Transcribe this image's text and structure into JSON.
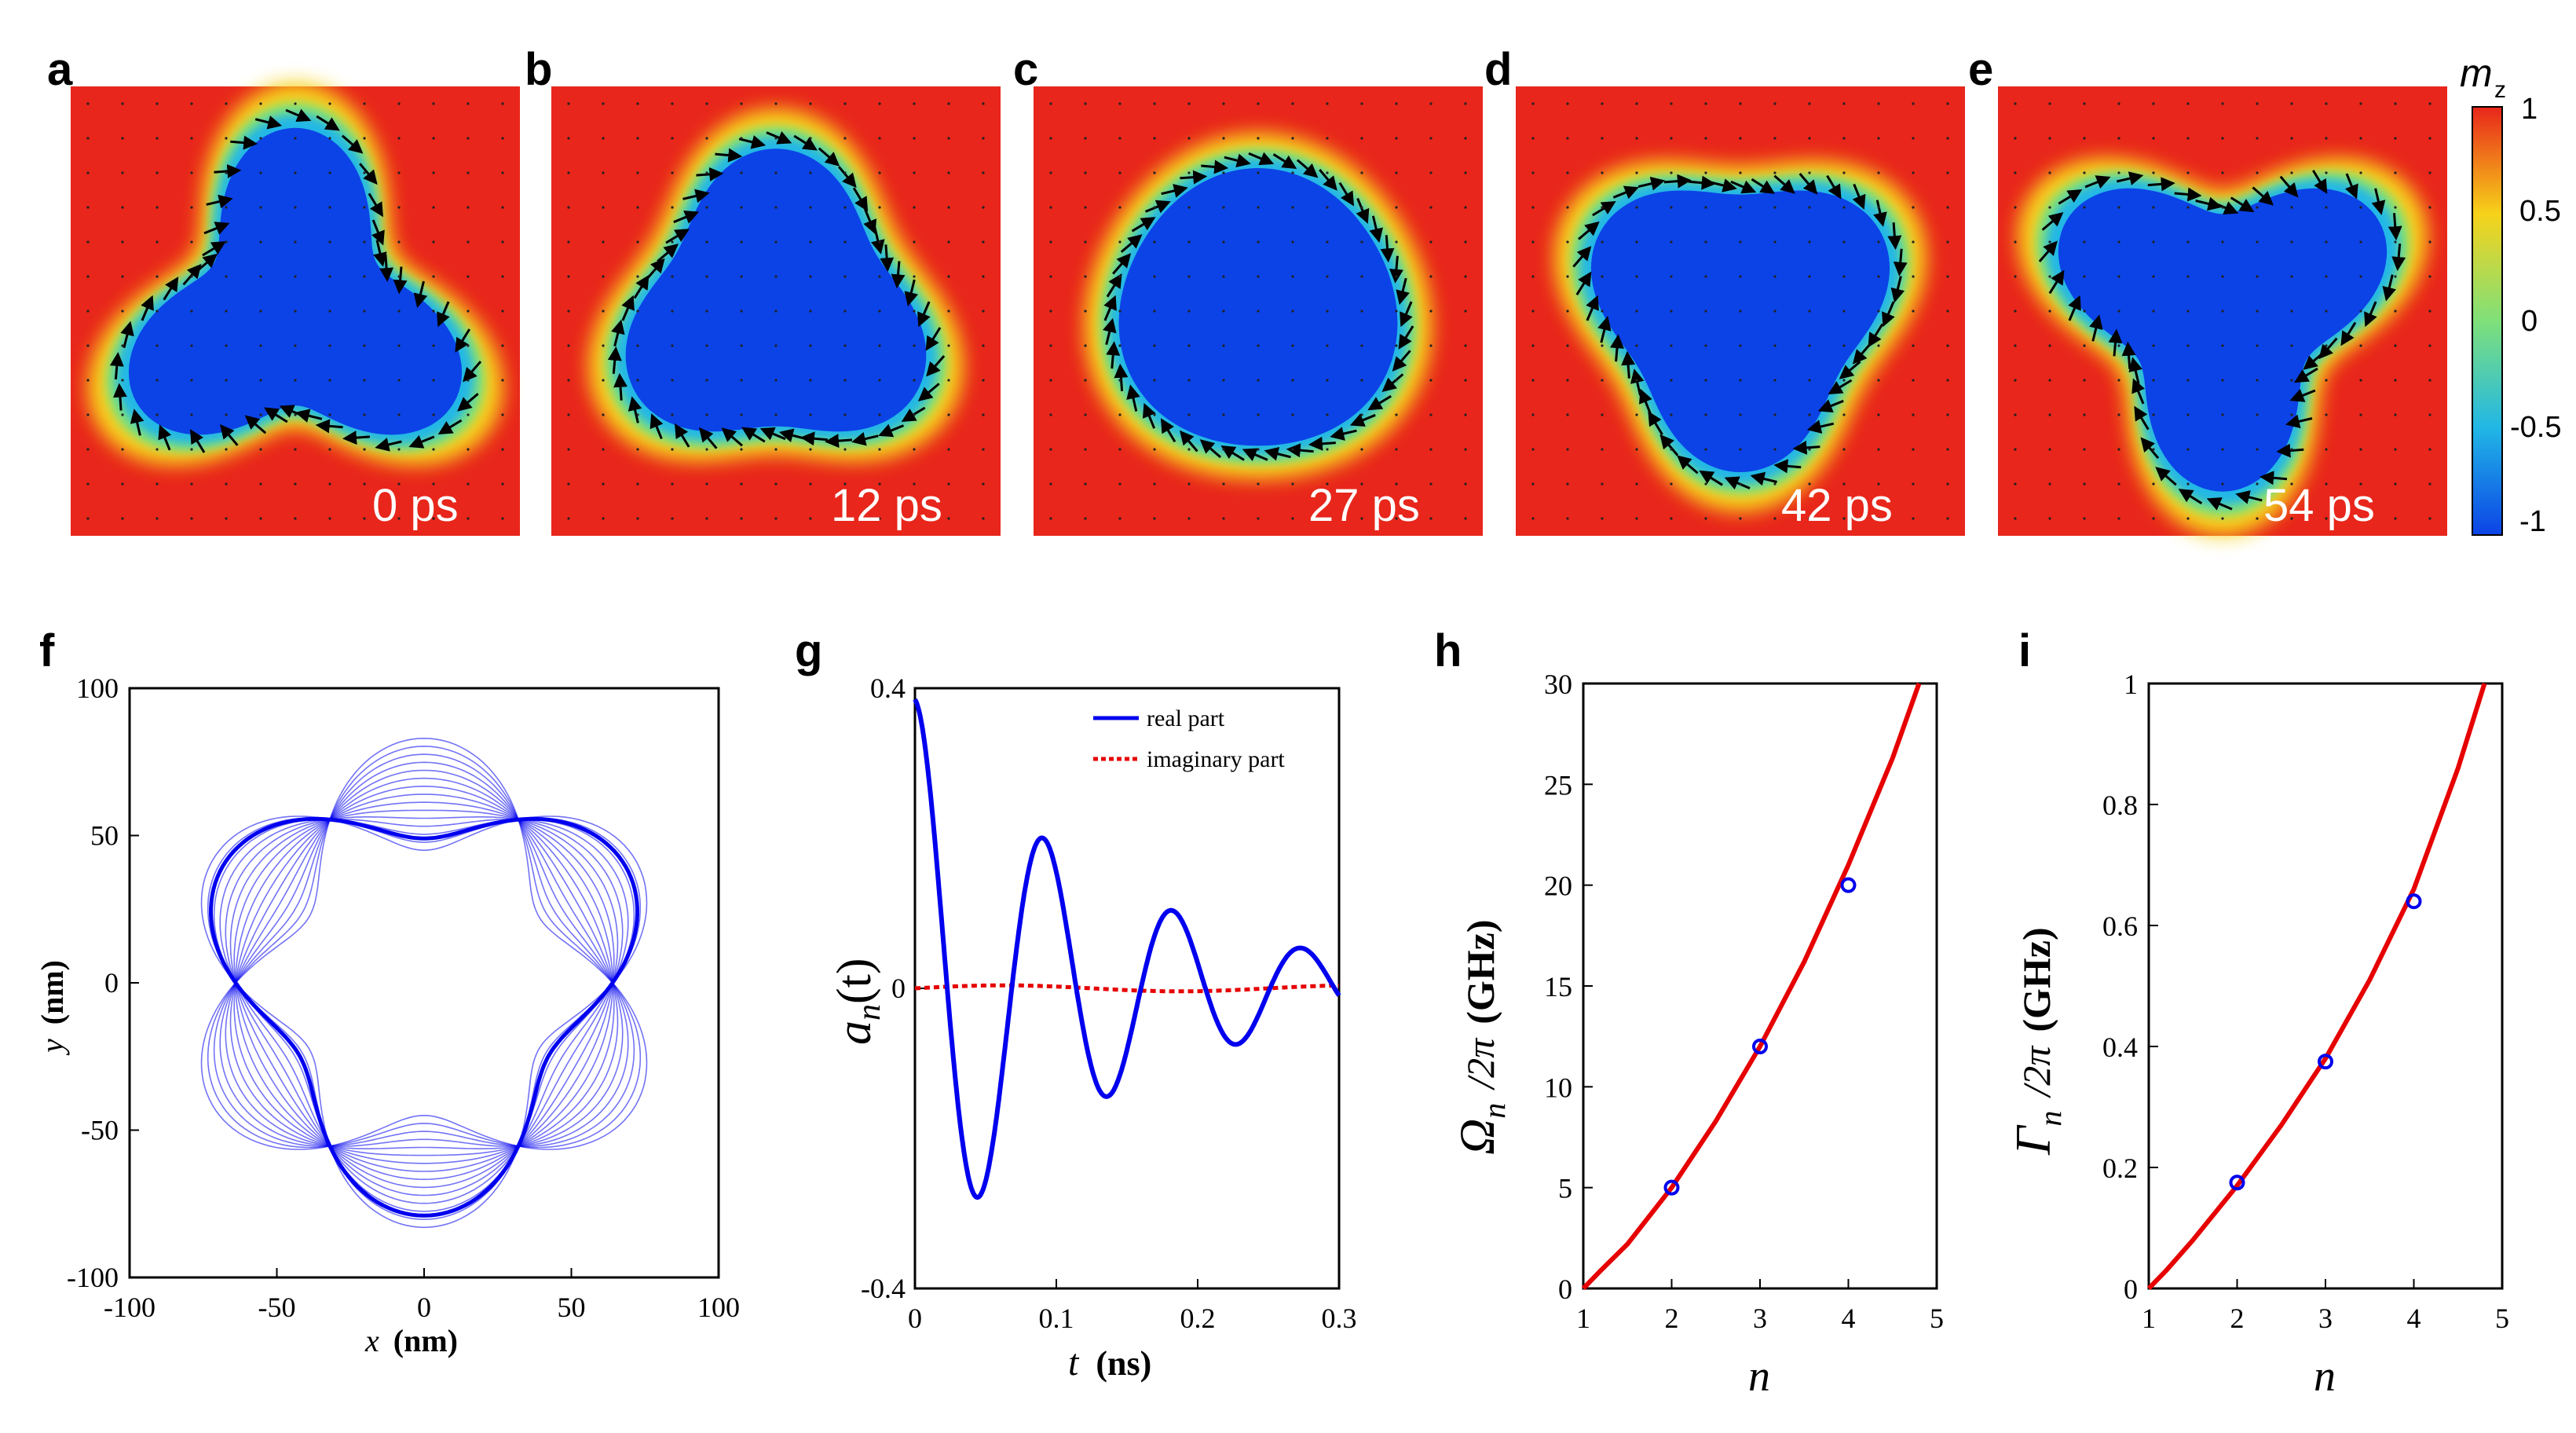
{
  "panels": {
    "a": "a",
    "b": "b",
    "c": "c",
    "d": "d",
    "e": "e",
    "f": "f",
    "g": "g",
    "h": "h",
    "i": "i"
  },
  "colorbar": {
    "label": "m",
    "label_sub": "z",
    "ticks": [
      "1",
      "0.5",
      "0",
      "-0.5",
      "-1"
    ],
    "colors": [
      "#e8261b",
      "#f7d21a",
      "#7fe07a",
      "#21b7e6",
      "#0c43e6"
    ]
  },
  "snapshots": [
    {
      "label": "0 ps",
      "lobes": 3,
      "rotation_deg": -90,
      "amplitude": 0.32
    },
    {
      "label": "12 ps",
      "lobes": 3,
      "rotation_deg": -90,
      "amplitude": 0.17
    },
    {
      "label": "27 ps",
      "lobes": 3,
      "rotation_deg": -90,
      "amplitude": 0.03
    },
    {
      "label": "42 ps",
      "lobes": 3,
      "rotation_deg": 90,
      "amplitude": 0.16
    },
    {
      "label": "54 ps",
      "lobes": 3,
      "rotation_deg": 90,
      "amplitude": 0.3
    }
  ],
  "chart_data": [
    {
      "panel": "f",
      "type": "line",
      "title": "",
      "xlabel_var": "x",
      "xlabel_unit": "(nm)",
      "ylabel_var": "y",
      "ylabel_unit": "(nm)",
      "xlim": [
        -100,
        100
      ],
      "ylim": [
        -100,
        100
      ],
      "xticks": [
        "-100",
        "-50",
        "0",
        "50",
        "100"
      ],
      "yticks": [
        "100",
        "50",
        "0",
        "-50",
        "-100"
      ],
      "mode_n": 3,
      "mean_radius": 64,
      "amplitude_range": [
        -19,
        19
      ],
      "thin_curve_count": 15,
      "bold_amplitude": 15,
      "color": "#0000ee"
    },
    {
      "panel": "g",
      "type": "line",
      "title": "",
      "xlabel_var": "t",
      "xlabel_unit": "(ns)",
      "ylabel_var": "a",
      "ylabel_sub": "n",
      "ylabel_arg": "(t)",
      "xlim": [
        0,
        0.3
      ],
      "ylim": [
        -0.4,
        0.4
      ],
      "xticks": [
        "0",
        "0.1",
        "0.2",
        "0.3"
      ],
      "yticks": [
        "0.4",
        "0",
        "-0.4"
      ],
      "legend_position": "top-right",
      "series": [
        {
          "name": "real part",
          "color": "#0000ee",
          "style": "solid",
          "amplitude": 0.385,
          "frequency_ghz": 10.95,
          "decay_ghz": 0.72
        },
        {
          "name": "imaginary part",
          "color": "#e60000",
          "style": "dashed",
          "amplitude": 0.004
        }
      ]
    },
    {
      "panel": "h",
      "type": "scatter",
      "title": "",
      "xlabel_var": "n",
      "ylabel_var": "Ω",
      "ylabel_sub": "n",
      "ylabel_rest": "/2π",
      "ylabel_unit": "(GHz)",
      "xlim": [
        1,
        5
      ],
      "ylim": [
        0,
        30
      ],
      "xticks": [
        "1",
        "2",
        "3",
        "4",
        "5"
      ],
      "yticks": [
        "0",
        "5",
        "10",
        "15",
        "20",
        "25",
        "30"
      ],
      "points": {
        "x": [
          2,
          3,
          4
        ],
        "y": [
          5.0,
          12.0,
          20.0
        ],
        "color": "#0000ee"
      },
      "curve": {
        "color": "#e60000",
        "x": [
          1.0,
          1.2,
          1.5,
          2.0,
          2.5,
          3.0,
          3.5,
          4.0,
          4.5,
          4.8
        ],
        "y": [
          0.0,
          0.9,
          2.2,
          5.0,
          8.3,
          12.0,
          16.2,
          21.0,
          26.3,
          30.0
        ]
      }
    },
    {
      "panel": "i",
      "type": "scatter",
      "title": "",
      "xlabel_var": "n",
      "ylabel_var": "Γ",
      "ylabel_sub": "n",
      "ylabel_rest": "/2π",
      "ylabel_unit": "(GHz)",
      "xlim": [
        1,
        5
      ],
      "ylim": [
        0,
        1
      ],
      "xticks": [
        "1",
        "2",
        "3",
        "4",
        "5"
      ],
      "yticks": [
        "0",
        "0.2",
        "0.4",
        "0.6",
        "0.8",
        "1"
      ],
      "points": {
        "x": [
          2,
          3,
          4
        ],
        "y": [
          0.175,
          0.375,
          0.64
        ],
        "color": "#0000ee"
      },
      "curve": {
        "color": "#e60000",
        "x": [
          1.0,
          1.2,
          1.5,
          2.0,
          2.5,
          3.0,
          3.5,
          4.0,
          4.5,
          4.8
        ],
        "y": [
          0.0,
          0.03,
          0.08,
          0.17,
          0.27,
          0.38,
          0.51,
          0.66,
          0.86,
          1.0
        ]
      }
    }
  ]
}
